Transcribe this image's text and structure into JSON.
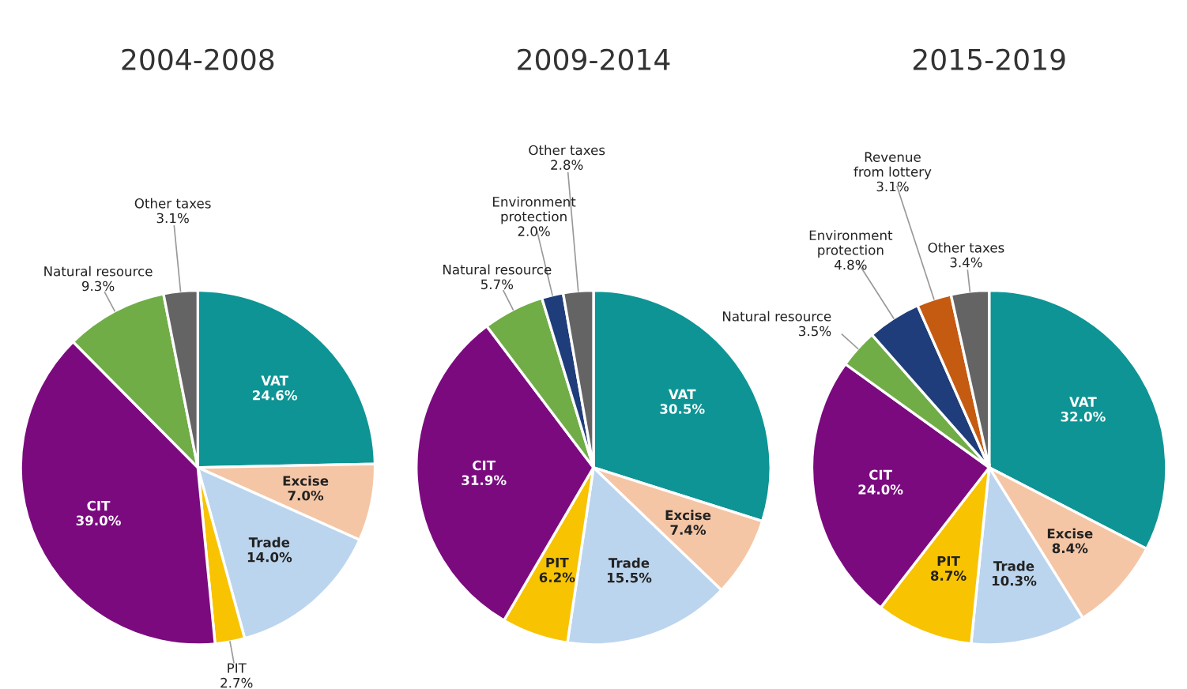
{
  "chart_data": [
    {
      "type": "pie",
      "title": "2004-2008",
      "categories": [
        "VAT",
        "Excise",
        "Trade",
        "PIT",
        "CIT",
        "Natural resource",
        "Other taxes"
      ],
      "values": [
        24.6,
        7.0,
        14.0,
        2.7,
        39.0,
        9.3,
        3.1
      ],
      "value_labels": [
        "24.6%",
        "7.0%",
        "14.0%",
        "2.7%",
        "39.0%",
        "9.3%",
        "3.1%"
      ],
      "colors": [
        "#0e9494",
        "#f5c6a5",
        "#bcd5ee",
        "#f8c300",
        "#7b0a7f",
        "#70ad47",
        "#646464"
      ]
    },
    {
      "type": "pie",
      "title": "2009-2014",
      "categories": [
        "VAT",
        "Excise",
        "Trade",
        "PIT",
        "CIT",
        "Natural resource",
        "Environment protection",
        "Other taxes"
      ],
      "values": [
        30.5,
        7.4,
        15.5,
        6.2,
        31.9,
        5.7,
        2.0,
        2.8
      ],
      "value_labels": [
        "30.5%",
        "7.4%",
        "15.5%",
        "6.2%",
        "31.9%",
        "5.7%",
        "2.0%",
        "2.8%"
      ],
      "colors": [
        "#0e9494",
        "#f5c6a5",
        "#bcd5ee",
        "#f8c300",
        "#7b0a7f",
        "#70ad47",
        "#1f3d7a",
        "#646464"
      ]
    },
    {
      "type": "pie",
      "title": "2015-2019",
      "categories": [
        "VAT",
        "Excise",
        "Trade",
        "PIT",
        "CIT",
        "Natural resource",
        "Environment protection",
        "Revenue from lottery",
        "Other taxes"
      ],
      "values": [
        32.0,
        8.4,
        10.3,
        8.7,
        24.0,
        3.5,
        4.8,
        3.1,
        3.4
      ],
      "value_labels": [
        "32.0%",
        "8.4%",
        "10.3%",
        "8.7%",
        "24.0%",
        "3.5%",
        "4.8%",
        "3.1%",
        "3.4%"
      ],
      "colors": [
        "#0e9494",
        "#f5c6a5",
        "#bcd5ee",
        "#f8c300",
        "#7b0a7f",
        "#70ad47",
        "#1f3d7a",
        "#c55a11",
        "#646464"
      ]
    }
  ]
}
